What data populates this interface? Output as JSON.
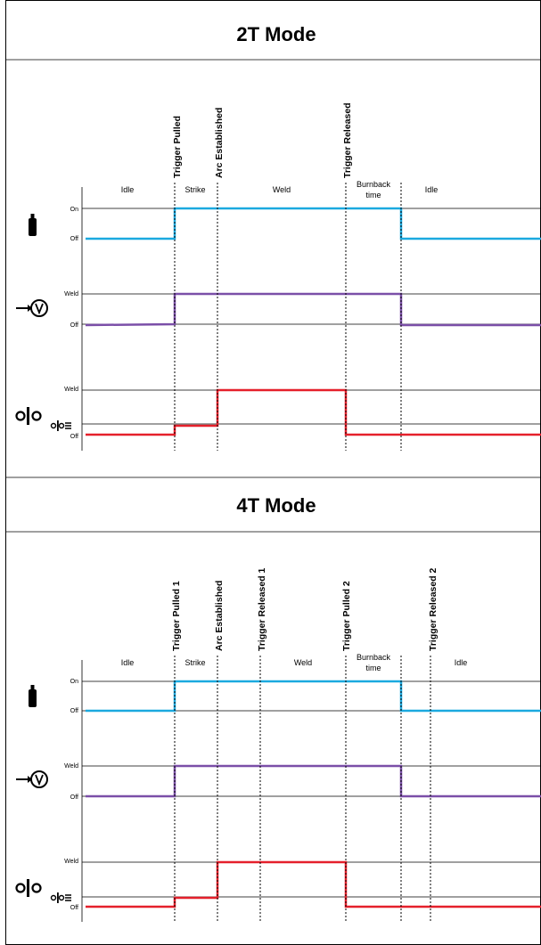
{
  "colors": {
    "gas": "#1ba9df",
    "voltage": "#7b4fa8",
    "current": "#e5202b",
    "axis": "#000000"
  },
  "icons": {
    "gas": "gas-cylinder-icon",
    "voltage": "voltage-icon",
    "current": "current-icon",
    "current_small": "current-small-icon"
  },
  "diagrams": [
    {
      "title": "2T Mode",
      "events": [
        "Trigger Pulled",
        "Arc Established",
        "Trigger Released"
      ],
      "states": [
        "Idle",
        "Strike",
        "Weld",
        "Burnback",
        "time",
        "Idle"
      ],
      "levels": {
        "on": "On",
        "off": "Off",
        "weld": "Weld"
      }
    },
    {
      "title": "4T Mode",
      "events": [
        "Trigger Pulled 1",
        "Arc Established",
        "Trigger Released 1",
        "Trigger Pulled 2",
        "Trigger Released 2"
      ],
      "states": [
        "Idle",
        "Strike",
        "Weld",
        "Burnback",
        "time",
        "Idle"
      ],
      "levels": {
        "on": "On",
        "off": "Off",
        "weld": "Weld"
      }
    }
  ]
}
